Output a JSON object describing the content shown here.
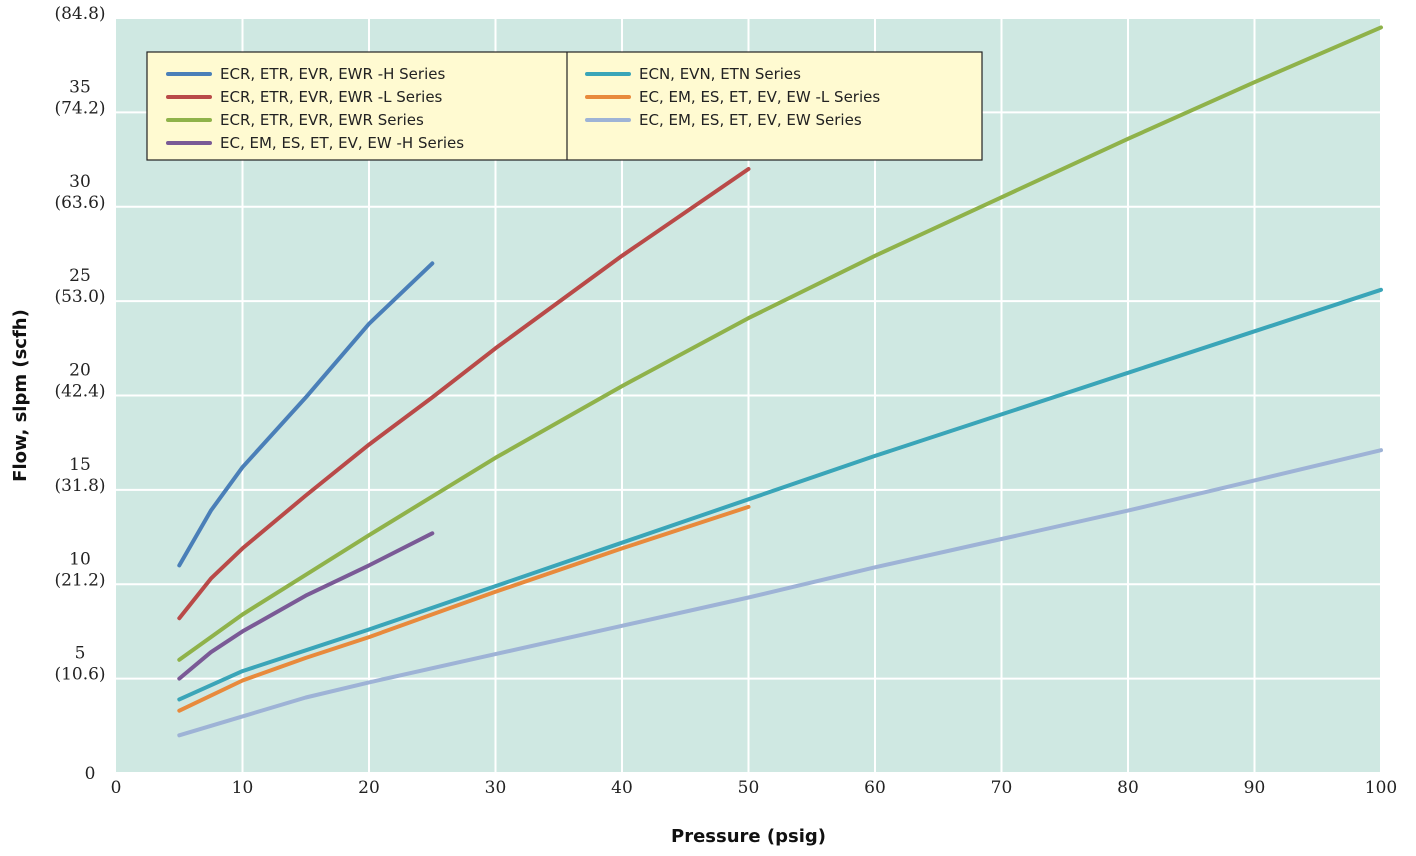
{
  "chart_data": {
    "type": "line",
    "title": "",
    "xlabel": "Pressure (psig)",
    "ylabel": "Flow, slpm (scfh)",
    "xlim": [
      0,
      100
    ],
    "ylim": [
      0,
      40
    ],
    "grid": true,
    "legend_position": "top-left",
    "background_color": "#cfe8e2",
    "legend_background": "#fffad1",
    "x_ticks": [
      "0",
      "10",
      "20",
      "30",
      "40",
      "50",
      "60",
      "70",
      "80",
      "90",
      "100"
    ],
    "y_ticks": [
      {
        "value": 0,
        "label": "0",
        "sublabel": ""
      },
      {
        "value": 5,
        "label": "5",
        "sublabel": "(10.6)"
      },
      {
        "value": 10,
        "label": "10",
        "sublabel": "(21.2)"
      },
      {
        "value": 15,
        "label": "15",
        "sublabel": "(31.8)"
      },
      {
        "value": 20,
        "label": "20",
        "sublabel": "(42.4)"
      },
      {
        "value": 25,
        "label": "25",
        "sublabel": "(53.0)"
      },
      {
        "value": 30,
        "label": "30",
        "sublabel": "(63.6)"
      },
      {
        "value": 35,
        "label": "35",
        "sublabel": "(74.2)"
      },
      {
        "value": 40,
        "label": "40",
        "sublabel": "(84.8)"
      }
    ],
    "series": [
      {
        "name": "ECR, ETR, EVR, EWR -H Series",
        "color": "#4a7fb8",
        "x": [
          5,
          7.5,
          10,
          15,
          20,
          25
        ],
        "y": [
          11.0,
          13.9,
          16.2,
          19.9,
          23.8,
          27.0
        ]
      },
      {
        "name": "ECR, ETR, EVR, EWR -L Series",
        "color": "#b94a48",
        "x": [
          5,
          7.5,
          10,
          15,
          20,
          25,
          30,
          40,
          50
        ],
        "y": [
          8.2,
          10.3,
          11.9,
          14.7,
          17.4,
          19.9,
          22.5,
          27.4,
          32.0
        ]
      },
      {
        "name": "ECR, ETR, EVR, EWR Series",
        "color": "#8fb24a",
        "x": [
          5,
          10,
          15,
          20,
          30,
          40,
          50,
          60,
          70,
          80,
          90,
          100
        ],
        "y": [
          6.0,
          8.4,
          10.5,
          12.6,
          16.7,
          20.5,
          24.1,
          27.4,
          30.5,
          33.6,
          36.6,
          39.5
        ]
      },
      {
        "name": "EC, EM, ES, ET, EV, EW -H Series",
        "color": "#7a5a96",
        "x": [
          5,
          7.5,
          10,
          15,
          20,
          25
        ],
        "y": [
          5.0,
          6.4,
          7.5,
          9.4,
          11.0,
          12.7
        ]
      },
      {
        "name": "ECN, EVN, ETN Series",
        "color": "#3aa5b8",
        "x": [
          5,
          10,
          15,
          20,
          30,
          40,
          50,
          60,
          70,
          80,
          90,
          100
        ],
        "y": [
          3.9,
          5.4,
          6.5,
          7.6,
          9.9,
          12.2,
          14.5,
          16.8,
          19.0,
          21.2,
          23.4,
          25.6
        ]
      },
      {
        "name": "EC, EM, ES, ET, EV, EW -L Series",
        "color": "#e88a3c",
        "x": [
          5,
          10,
          15,
          20,
          30,
          40,
          50
        ],
        "y": [
          3.3,
          4.9,
          6.1,
          7.2,
          9.6,
          11.9,
          14.1
        ]
      },
      {
        "name": "EC, EM, ES, ET, EV, EW Series",
        "color": "#9eb3d6",
        "x": [
          5,
          10,
          15,
          20,
          30,
          40,
          50,
          60,
          70,
          80,
          90,
          100
        ],
        "y": [
          2.0,
          3.0,
          4.0,
          4.8,
          6.3,
          7.8,
          9.3,
          10.9,
          12.4,
          13.9,
          15.5,
          17.1
        ]
      }
    ]
  }
}
